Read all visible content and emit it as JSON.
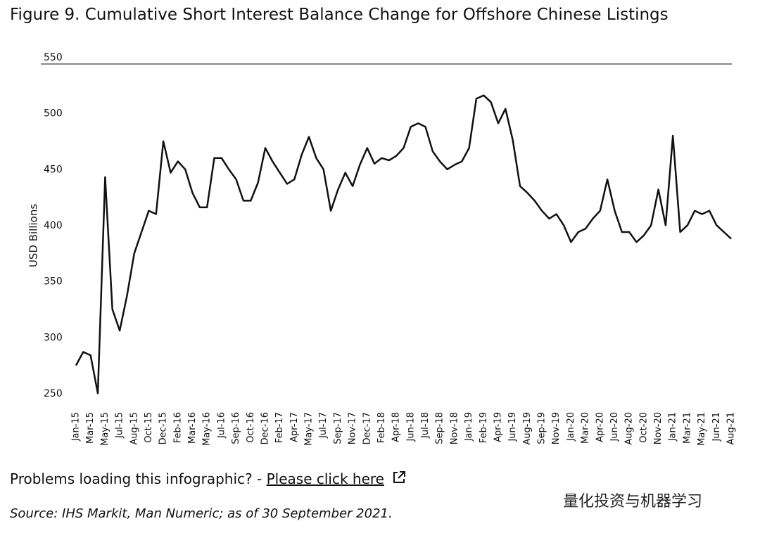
{
  "title": "Figure 9. Cumulative Short Interest Balance Change for Offshore Chinese Listings",
  "chart_data": {
    "type": "line",
    "y_label": "USD Billions",
    "categories": [
      "Jan-15",
      null,
      "Mar-15",
      null,
      "May-15",
      null,
      "Jul-15",
      null,
      "Aug-15",
      null,
      "Oct-15",
      null,
      "Dec-15",
      null,
      "Feb-16",
      null,
      "Mar-16",
      null,
      "May-16",
      null,
      "Jul-16",
      null,
      "Sep-16",
      null,
      "Oct-16",
      null,
      "Dec-16",
      null,
      "Feb-17",
      null,
      "Apr-17",
      null,
      "May-17",
      null,
      "Jul-17",
      null,
      "Sep-17",
      null,
      "Nov-17",
      null,
      "Dec-17",
      null,
      "Feb-18",
      null,
      "Apr-18",
      null,
      "Jun-18",
      null,
      "Jul-18",
      null,
      "Sep-18",
      null,
      "Nov-18",
      null,
      "Jan-19",
      null,
      "Feb-19",
      null,
      "Apr-19",
      null,
      "Jun-19",
      null,
      "Aug-19",
      null,
      "Sep-19",
      null,
      "Nov-19",
      null,
      "Jan-20",
      null,
      "Mar-20",
      null,
      "Apr-20",
      null,
      "Jun-20",
      null,
      "Aug-20",
      null,
      "Oct-20",
      null,
      "Nov-20",
      null,
      "Jan-21",
      null,
      "Mar-21",
      null,
      "May-21",
      null,
      "Jun-21",
      null,
      "Aug-21"
    ],
    "values": [
      281,
      293,
      290,
      256,
      449,
      331,
      312,
      343,
      381,
      400,
      419,
      416,
      481,
      453,
      463,
      456,
      435,
      422,
      422,
      466,
      466,
      456,
      447,
      428,
      428,
      444,
      475,
      463,
      453,
      443,
      447,
      469,
      485,
      466,
      456,
      419,
      438,
      453,
      441,
      460,
      475,
      461,
      466,
      464,
      468,
      475,
      494,
      497,
      494,
      472,
      463,
      456,
      460,
      463,
      475,
      519,
      522,
      516,
      497,
      510,
      482,
      441,
      435,
      428,
      419,
      412,
      416,
      406,
      391,
      400,
      403,
      412,
      419,
      447,
      419,
      400,
      400,
      391,
      397,
      406,
      438,
      406,
      486,
      400,
      406,
      419,
      416,
      419,
      406,
      400,
      394
    ],
    "color": "#111111",
    "ylim": [
      250,
      550
    ],
    "yticks": [
      250,
      300,
      350,
      400,
      450,
      500,
      550
    ],
    "grid": false
  },
  "footer": {
    "problems": "Problems loading this infographic? -",
    "link": "Please click here",
    "source": "Source: IHS Markit, Man Numeric; as of 30 September 2021.",
    "watermark": "量化投资与机器学习"
  }
}
